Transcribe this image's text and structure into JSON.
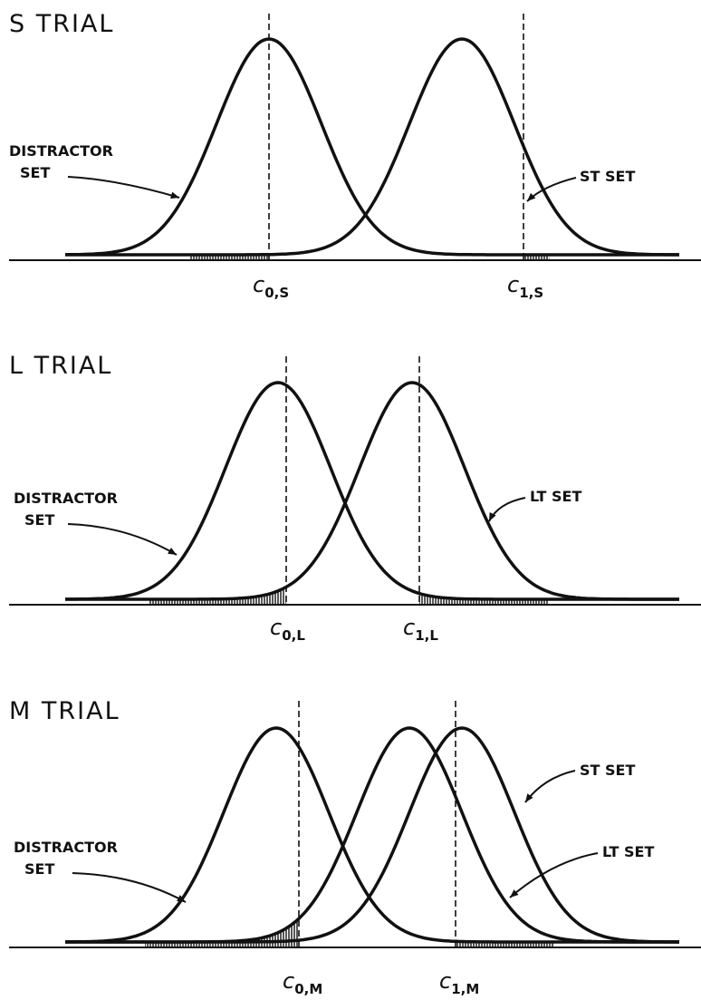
{
  "panels": [
    {
      "title": "S TRIAL",
      "labels": [
        {
          "lines": [
            "DISTRACTOR",
            "SET"
          ]
        },
        {
          "lines": [
            "ST SET"
          ]
        }
      ],
      "criteria": [
        {
          "symbol": "c",
          "subscript": "0,S"
        },
        {
          "symbol": "c",
          "subscript": "1,S"
        }
      ]
    },
    {
      "title": "L TRIAL",
      "labels": [
        {
          "lines": [
            "DISTRACTOR",
            "SET"
          ]
        },
        {
          "lines": [
            "LT SET"
          ]
        }
      ],
      "criteria": [
        {
          "symbol": "c",
          "subscript": "0,L"
        },
        {
          "symbol": "c",
          "subscript": "1,L"
        }
      ]
    },
    {
      "title": "M TRIAL",
      "labels": [
        {
          "lines": [
            "DISTRACTOR",
            "SET"
          ]
        },
        {
          "lines": [
            "ST SET"
          ]
        },
        {
          "lines": [
            "LT SET"
          ]
        }
      ],
      "criteria": [
        {
          "symbol": "c",
          "subscript": "0,M"
        },
        {
          "symbol": "c",
          "subscript": "1,M"
        }
      ]
    }
  ]
}
